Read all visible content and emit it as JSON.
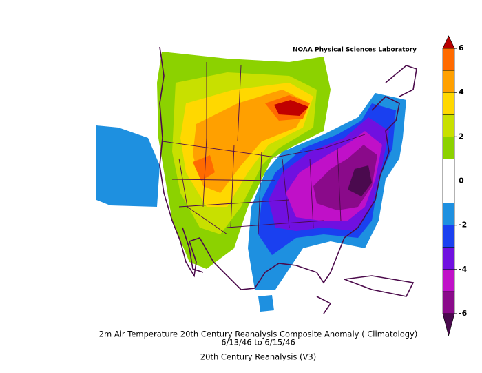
{
  "credit": "NOAA Physical Sciences Laboratory",
  "title": "2m Air Temperature 20th Century Reanalysis Composite Anomaly ( Climatology)",
  "dates": "6/13/46   to 6/15/46",
  "source": "20th Century Reanalysis (V3)",
  "colorbar": {
    "lim": [
      -6,
      6
    ],
    "ticks": [
      -6,
      -4,
      -2,
      0,
      2,
      4,
      6
    ],
    "under_color": "#4a0a4e",
    "over_color": "#b80000",
    "colors": [
      "#8a0a8a",
      "#c010c8",
      "#7010e0",
      "#1a40f0",
      "#1e90e0",
      "#ffffff",
      "#ffffff",
      "#8cd200",
      "#c8e000",
      "#ffd800",
      "#ffa000",
      "#ff6a00"
    ]
  }
}
